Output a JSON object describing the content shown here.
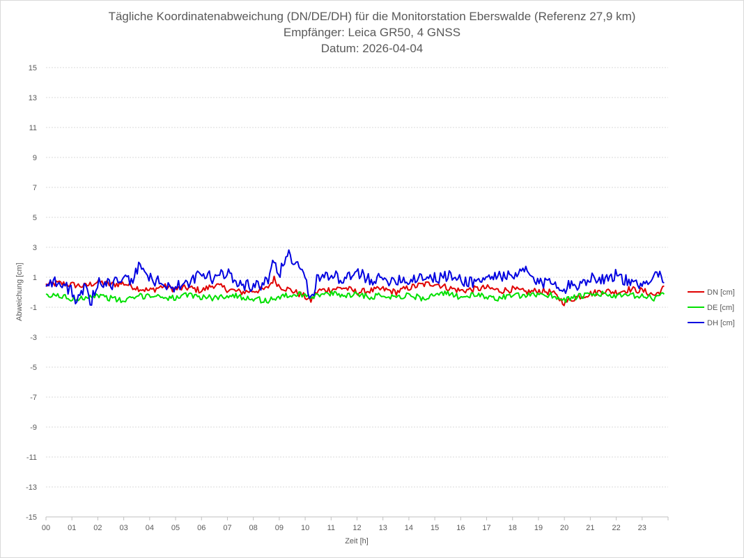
{
  "chart_data": {
    "type": "line",
    "title": [
      "Tägliche Koordinatenabweichung (DN/DE/DH) für die Monitorstation Eberswalde (Referenz 27,9 km)",
      "Empfänger: Leica GR50, 4 GNSS",
      "Datum: 2026-04-04"
    ],
    "xlabel": "Zeit [h]",
    "ylabel": "Abweichung [cm]",
    "xlim": [
      0,
      24
    ],
    "ylim": [
      -15,
      15
    ],
    "y_ticks": [
      "15",
      "13",
      "11",
      "9",
      "7",
      "5",
      "3",
      "1",
      "-1",
      "-3",
      "-5",
      "-7",
      "-9",
      "-11",
      "-13",
      "-15"
    ],
    "x_ticks": [
      "00",
      "01",
      "02",
      "03",
      "04",
      "05",
      "06",
      "07",
      "08",
      "09",
      "10",
      "11",
      "12",
      "13",
      "14",
      "15",
      "16",
      "17",
      "18",
      "19",
      "20",
      "21",
      "22",
      "23"
    ],
    "grid": true,
    "legend_position": "right",
    "series": [
      {
        "name": "DN [cm]",
        "color": "#e00000",
        "x": [
          0,
          0.5,
          1,
          1.5,
          2,
          2.5,
          3,
          3.5,
          4,
          4.5,
          5,
          5.5,
          6,
          6.5,
          7,
          7.5,
          8,
          8.5,
          8.8,
          9,
          9.5,
          10,
          10.2,
          10.5,
          11,
          11.5,
          12,
          12.5,
          13,
          13.5,
          14,
          14.5,
          15,
          15.5,
          16,
          16.5,
          17,
          17.5,
          18,
          18.5,
          19,
          19.5,
          20,
          20.5,
          21,
          21.5,
          22,
          22.5,
          23,
          23.5,
          23.85
        ],
        "values": [
          0.5,
          0.6,
          0.5,
          0.4,
          0.7,
          0.5,
          0.6,
          0.3,
          0.1,
          0.4,
          0.2,
          0.3,
          0.1,
          0.5,
          0.2,
          0.0,
          0.1,
          0.2,
          0.9,
          0.4,
          0.1,
          -0.3,
          -0.6,
          0.1,
          0.2,
          0.3,
          0.0,
          0.1,
          0.2,
          0.0,
          0.3,
          0.5,
          0.6,
          0.3,
          0.1,
          0.2,
          0.3,
          0.1,
          0.2,
          0.0,
          0.1,
          0.0,
          -0.7,
          -0.3,
          -0.1,
          0.1,
          0.0,
          0.2,
          0.1,
          -0.2,
          0.3
        ]
      },
      {
        "name": "DE [cm]",
        "color": "#00e000",
        "x": [
          0,
          0.5,
          1,
          1.5,
          2,
          2.5,
          3,
          3.5,
          4,
          4.5,
          5,
          5.5,
          6,
          6.5,
          7,
          7.5,
          8,
          8.5,
          9,
          9.5,
          10,
          10.2,
          10.5,
          11,
          11.5,
          12,
          12.5,
          13,
          13.5,
          14,
          14.5,
          15,
          15.5,
          16,
          16.5,
          17,
          17.5,
          18,
          18.5,
          19,
          19.5,
          20,
          20.5,
          21,
          21.5,
          22,
          22.5,
          23,
          23.5,
          23.85
        ],
        "values": [
          -0.3,
          -0.2,
          -0.5,
          -0.3,
          -0.2,
          -0.4,
          -0.6,
          -0.3,
          -0.2,
          -0.3,
          -0.4,
          -0.2,
          -0.3,
          -0.4,
          -0.2,
          -0.3,
          -0.4,
          -0.6,
          -0.3,
          -0.2,
          -0.1,
          -0.3,
          -0.2,
          -0.1,
          -0.2,
          -0.1,
          -0.3,
          -0.2,
          -0.3,
          -0.2,
          -0.4,
          -0.2,
          -0.1,
          -0.3,
          -0.2,
          -0.3,
          -0.4,
          -0.2,
          -0.3,
          -0.1,
          -0.2,
          -0.5,
          -0.3,
          -0.2,
          -0.1,
          -0.3,
          -0.2,
          -0.3,
          -0.4,
          0.0
        ]
      },
      {
        "name": "DH [cm]",
        "color": "#0000e0",
        "x": [
          0,
          0.3,
          0.6,
          1,
          1.2,
          1.5,
          1.7,
          2,
          2.5,
          3,
          3.3,
          3.6,
          4,
          4.5,
          5,
          5.5,
          6,
          6.5,
          7,
          7.5,
          8,
          8.5,
          8.8,
          9,
          9.3,
          9.6,
          9.8,
          10,
          10.2,
          10.5,
          11,
          11.5,
          12,
          12.5,
          13,
          13.5,
          14,
          14.5,
          15,
          15.5,
          16,
          16.5,
          17,
          17.5,
          18,
          18.5,
          19,
          19.5,
          20,
          20.5,
          21,
          21.5,
          22,
          22.5,
          23,
          23.5,
          23.85
        ],
        "values": [
          0.6,
          0.8,
          0.4,
          0.2,
          -0.8,
          0.5,
          -1.0,
          0.8,
          0.5,
          1.0,
          0.6,
          1.9,
          0.9,
          0.6,
          0.3,
          0.6,
          1.2,
          0.9,
          1.3,
          0.6,
          0.4,
          0.6,
          2.0,
          1.2,
          2.6,
          2.1,
          1.7,
          1.3,
          -0.8,
          1.1,
          1.2,
          0.7,
          1.3,
          0.9,
          0.8,
          0.9,
          0.8,
          1.1,
          0.9,
          1.1,
          0.8,
          0.7,
          0.9,
          1.2,
          0.9,
          1.5,
          0.5,
          0.8,
          0.3,
          0.5,
          1.0,
          0.9,
          1.2,
          0.6,
          0.3,
          1.5,
          0.8
        ]
      }
    ]
  }
}
